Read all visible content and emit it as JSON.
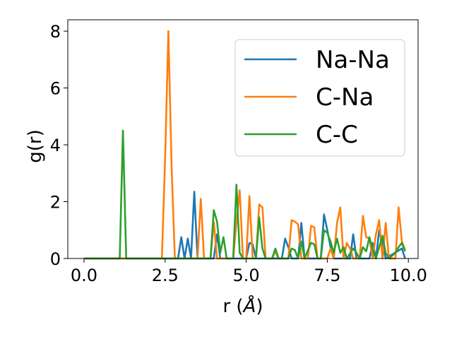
{
  "chart_data": {
    "type": "line",
    "xlabel": "r (Å)",
    "xlabel_text": "r (",
    "xlabel_unit": "Å",
    "ylabel": "g(r)",
    "xlim": [
      -0.5,
      10.3
    ],
    "ylim": [
      0,
      8.4
    ],
    "xticks": [
      0.0,
      2.5,
      5.0,
      7.5,
      10.0
    ],
    "xtick_labels": [
      "0.0",
      "2.5",
      "5.0",
      "7.5",
      "10.0"
    ],
    "yticks": [
      0,
      2,
      4,
      6,
      8
    ],
    "ytick_labels": [
      "0",
      "2",
      "4",
      "6",
      "8"
    ],
    "grid": false,
    "legend_position": "upper-right",
    "series": [
      {
        "name": "Na-Na",
        "color": "#1f77b4",
        "points": [
          [
            0.0,
            0
          ],
          [
            2.9,
            0
          ],
          [
            3.0,
            0.75
          ],
          [
            3.1,
            0
          ],
          [
            3.2,
            0.7
          ],
          [
            3.3,
            0
          ],
          [
            3.4,
            2.35
          ],
          [
            3.5,
            0
          ],
          [
            4.0,
            0
          ],
          [
            4.1,
            0.85
          ],
          [
            4.2,
            0
          ],
          [
            5.0,
            0
          ],
          [
            5.1,
            0.55
          ],
          [
            5.2,
            0.5
          ],
          [
            5.3,
            0
          ],
          [
            6.1,
            0
          ],
          [
            6.2,
            0.7
          ],
          [
            6.3,
            0.4
          ],
          [
            6.4,
            0
          ],
          [
            6.6,
            0
          ],
          [
            6.7,
            1.25
          ],
          [
            6.8,
            0
          ],
          [
            7.3,
            0
          ],
          [
            7.4,
            1.55
          ],
          [
            7.5,
            1.0
          ],
          [
            7.6,
            0.4
          ],
          [
            7.7,
            0
          ],
          [
            8.2,
            0
          ],
          [
            8.3,
            0.85
          ],
          [
            8.4,
            0
          ],
          [
            8.8,
            0
          ],
          [
            8.9,
            0.55
          ],
          [
            9.0,
            0
          ],
          [
            9.1,
            1.0
          ],
          [
            9.2,
            0.5
          ],
          [
            9.3,
            0
          ],
          [
            9.8,
            0.35
          ],
          [
            9.9,
            0
          ]
        ]
      },
      {
        "name": "C-Na",
        "color": "#ff7f0e",
        "points": [
          [
            0.0,
            0
          ],
          [
            2.4,
            0
          ],
          [
            2.5,
            3.5
          ],
          [
            2.6,
            8.0
          ],
          [
            2.7,
            3.2
          ],
          [
            2.8,
            0
          ],
          [
            3.5,
            0
          ],
          [
            3.6,
            2.1
          ],
          [
            3.7,
            0
          ],
          [
            3.9,
            0
          ],
          [
            4.0,
            1.3
          ],
          [
            4.1,
            0
          ],
          [
            4.6,
            0
          ],
          [
            4.7,
            1.3
          ],
          [
            4.8,
            2.4
          ],
          [
            4.9,
            0
          ],
          [
            5.0,
            0
          ],
          [
            5.1,
            2.2
          ],
          [
            5.2,
            0
          ],
          [
            5.3,
            0
          ],
          [
            5.4,
            1.9
          ],
          [
            5.5,
            1.8
          ],
          [
            5.6,
            0
          ],
          [
            5.8,
            0
          ],
          [
            5.9,
            0.25
          ],
          [
            6.0,
            0
          ],
          [
            6.3,
            0
          ],
          [
            6.4,
            1.35
          ],
          [
            6.5,
            1.3
          ],
          [
            6.6,
            1.2
          ],
          [
            6.7,
            0
          ],
          [
            6.9,
            0
          ],
          [
            7.0,
            1.15
          ],
          [
            7.1,
            1.1
          ],
          [
            7.2,
            0
          ],
          [
            7.5,
            0
          ],
          [
            7.6,
            0.35
          ],
          [
            7.7,
            0
          ],
          [
            7.8,
            1.25
          ],
          [
            7.9,
            1.8
          ],
          [
            8.0,
            0
          ],
          [
            8.1,
            0.55
          ],
          [
            8.2,
            0.35
          ],
          [
            8.3,
            0
          ],
          [
            8.5,
            0
          ],
          [
            8.6,
            1.5
          ],
          [
            8.7,
            0.75
          ],
          [
            8.8,
            0.7
          ],
          [
            8.9,
            0
          ],
          [
            9.0,
            0.85
          ],
          [
            9.1,
            1.35
          ],
          [
            9.2,
            0
          ],
          [
            9.3,
            1.25
          ],
          [
            9.4,
            0
          ],
          [
            9.6,
            0
          ],
          [
            9.7,
            1.8
          ],
          [
            9.8,
            0.6
          ],
          [
            9.9,
            0.3
          ]
        ]
      },
      {
        "name": "C-C",
        "color": "#2ca02c",
        "points": [
          [
            0.0,
            0
          ],
          [
            1.1,
            0
          ],
          [
            1.2,
            4.5
          ],
          [
            1.3,
            0
          ],
          [
            3.9,
            0
          ],
          [
            4.0,
            1.7
          ],
          [
            4.1,
            1.3
          ],
          [
            4.2,
            0.2
          ],
          [
            4.3,
            0.75
          ],
          [
            4.4,
            0
          ],
          [
            4.6,
            0
          ],
          [
            4.7,
            2.6
          ],
          [
            4.8,
            0.2
          ],
          [
            4.9,
            0
          ],
          [
            5.3,
            0
          ],
          [
            5.4,
            1.45
          ],
          [
            5.5,
            0.35
          ],
          [
            5.6,
            0
          ],
          [
            5.8,
            0
          ],
          [
            5.9,
            0.35
          ],
          [
            6.0,
            0
          ],
          [
            6.3,
            0
          ],
          [
            6.4,
            0.35
          ],
          [
            6.5,
            0.3
          ],
          [
            6.6,
            0
          ],
          [
            6.7,
            0.6
          ],
          [
            6.8,
            0
          ],
          [
            7.0,
            0.55
          ],
          [
            7.1,
            0.5
          ],
          [
            7.2,
            0
          ],
          [
            7.3,
            0
          ],
          [
            7.4,
            1.0
          ],
          [
            7.5,
            0.9
          ],
          [
            7.6,
            0.6
          ],
          [
            7.7,
            0.2
          ],
          [
            7.8,
            0.7
          ],
          [
            7.9,
            0.2
          ],
          [
            8.0,
            0.4
          ],
          [
            8.1,
            0
          ],
          [
            8.3,
            0.35
          ],
          [
            8.4,
            0.2
          ],
          [
            8.5,
            0
          ],
          [
            8.6,
            0.4
          ],
          [
            8.7,
            0.25
          ],
          [
            8.8,
            0.75
          ],
          [
            8.9,
            0.3
          ],
          [
            9.0,
            0
          ],
          [
            9.1,
            0.4
          ],
          [
            9.2,
            0.8
          ],
          [
            9.3,
            0.2
          ],
          [
            9.4,
            0
          ],
          [
            9.6,
            0.2
          ],
          [
            9.7,
            0.4
          ],
          [
            9.8,
            0.55
          ],
          [
            9.9,
            0.25
          ]
        ]
      }
    ]
  }
}
